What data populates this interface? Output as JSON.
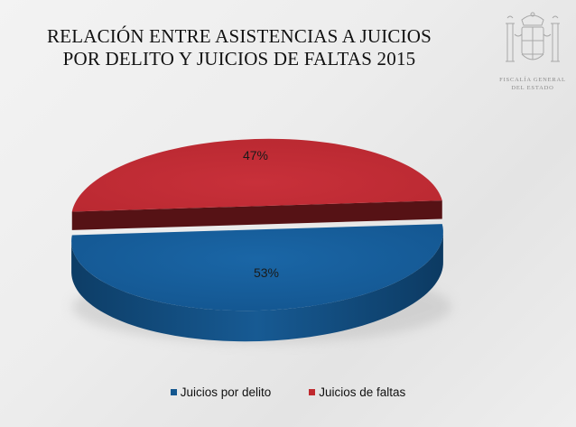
{
  "title": {
    "line1": "RELACIÓN ENTRE ASISTENCIAS A JUICIOS",
    "line2": "POR DELITO Y JUICIOS DE FALTAS 2015"
  },
  "emblem": {
    "icon": "coat-of-arms-emblem",
    "line1": "FISCALÍA GENERAL",
    "line2": "DEL ESTADO"
  },
  "chart_data": {
    "type": "pie",
    "style": "3d-exploded",
    "title": "RELACIÓN ENTRE ASISTENCIAS A JUICIOS POR DELITO Y JUICIOS DE FALTAS 2015",
    "series": [
      {
        "name": "Juicios por delito",
        "value": 53,
        "label": "53%",
        "color": "#14578f"
      },
      {
        "name": "Juicios de faltas",
        "value": 47,
        "label": "47%",
        "color": "#c0292e"
      }
    ],
    "legend_position": "bottom"
  }
}
